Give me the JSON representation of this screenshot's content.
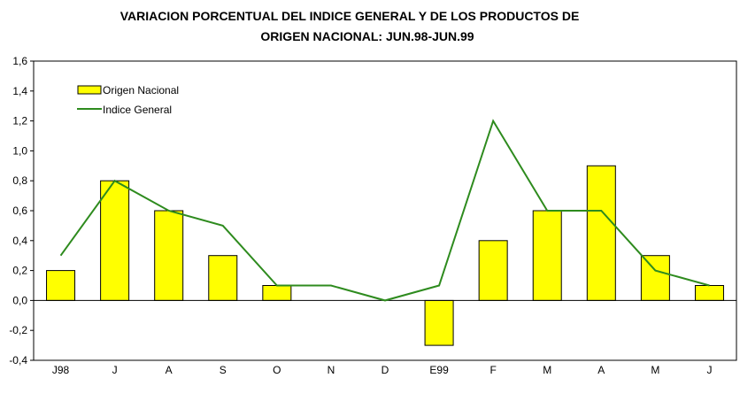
{
  "chart_data": {
    "type": "bar",
    "title": [
      "VARIACION PORCENTUAL DEL INDICE GENERAL Y DE LOS PRODUCTOS DE",
      "ORIGEN NACIONAL: JUN.98-JUN.99"
    ],
    "xlabel": "",
    "ylabel": "",
    "ylim": [
      -0.4,
      1.6
    ],
    "yticks": [
      -0.4,
      -0.2,
      0.0,
      0.2,
      0.4,
      0.6,
      0.8,
      1.0,
      1.2,
      1.4,
      1.6
    ],
    "ytick_labels": [
      "-0,4",
      "-0,2",
      "0,0",
      "0,2",
      "0,4",
      "0,6",
      "0,8",
      "1,0",
      "1,2",
      "1,4",
      "1,6"
    ],
    "categories": [
      "J98",
      "J",
      "A",
      "S",
      "O",
      "N",
      "D",
      "E99",
      "F",
      "M",
      "A",
      "M",
      "J"
    ],
    "legend_position": "top-left",
    "series": [
      {
        "name": "Origen Nacional",
        "type": "bar",
        "color": "#ffff00",
        "values": [
          0.2,
          0.8,
          0.6,
          0.3,
          0.1,
          0,
          0,
          -0.3,
          0.4,
          0.6,
          0.9,
          0.3,
          0.1
        ]
      },
      {
        "name": "Indice General",
        "type": "line",
        "color": "#2e8b1e",
        "values": [
          0.3,
          0.8,
          0.6,
          0.5,
          0.1,
          0.1,
          0.0,
          0.1,
          1.2,
          0.6,
          0.6,
          0.2,
          0.1
        ]
      }
    ]
  }
}
